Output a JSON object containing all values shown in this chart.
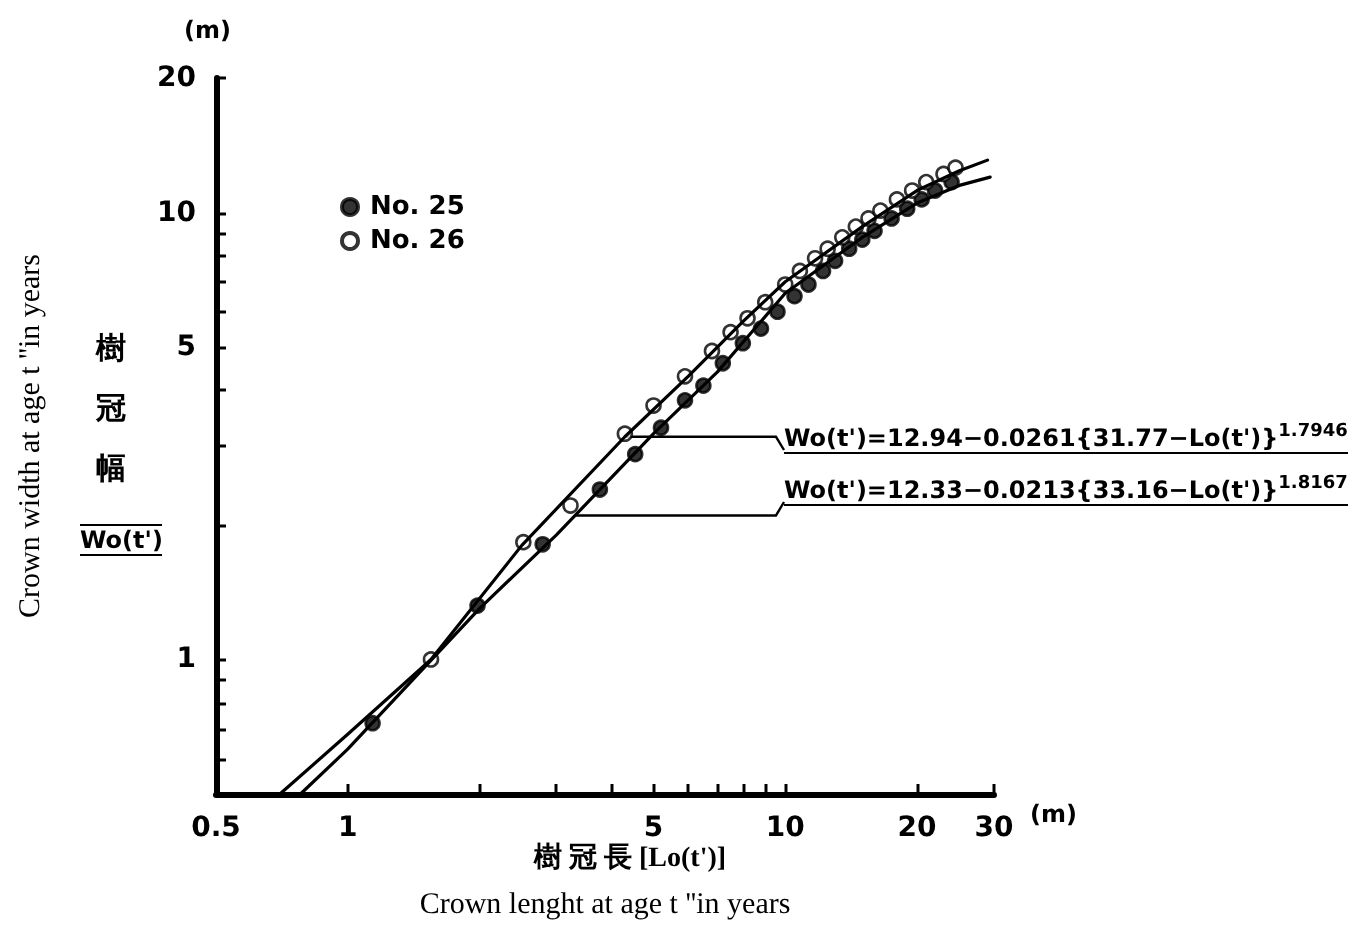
{
  "chart_data": {
    "type": "scatter",
    "xlabel": "Crown lenght at age t ''in years",
    "ylabel": "Crown width at age t ''in years",
    "log": "xy",
    "grid": false,
    "legend": "top left",
    "marker": "circle",
    "line_style": "solid",
    "xlim": [
      0.5,
      30
    ],
    "ylim": [
      0.5,
      20
    ],
    "xticks": [
      0.5,
      1,
      {
        "value": 2,
        "label": null
      },
      {
        "value": 3,
        "label": null
      },
      {
        "value": 4,
        "label": null
      },
      5,
      {
        "value": 6,
        "label": null
      },
      {
        "value": 7,
        "label": null
      },
      {
        "value": 8,
        "label": null
      },
      {
        "value": 9,
        "label": null
      },
      10,
      20,
      30
    ],
    "yticks": [
      {
        "value": 0.6,
        "label": null
      },
      {
        "value": 0.7,
        "label": null
      },
      {
        "value": 0.8,
        "label": null
      },
      {
        "value": 0.9,
        "label": null
      },
      1,
      {
        "value": 2,
        "label": null
      },
      {
        "value": 3,
        "label": null
      },
      {
        "value": 4,
        "label": null
      },
      5,
      {
        "value": 6,
        "label": null
      },
      {
        "value": 7,
        "label": null
      },
      {
        "value": 8,
        "label": null
      },
      {
        "value": 9,
        "label": null
      },
      10,
      20
    ],
    "series": [
      {
        "name": "No. 25",
        "color": "#000000",
        "x": [
          1.14,
          1.98,
          2.79,
          3.77,
          4.54,
          5.2,
          5.9,
          6.5,
          7.2,
          8,
          8.8,
          9.6,
          10.5,
          11.3,
          12.2,
          13,
          14,
          15,
          16,
          17.5,
          19,
          20.5,
          22,
          24
        ],
        "values": [
          0.72,
          1.32,
          1.81,
          2.4,
          2.88,
          3.3,
          3.8,
          4.1,
          4.6,
          5.1,
          5.5,
          6.0,
          6.5,
          6.9,
          7.4,
          7.8,
          8.3,
          8.7,
          9.1,
          9.7,
          10.2,
          10.7,
          11.2,
          11.7
        ]
      },
      {
        "name": "No. 26",
        "color": "#ffffff",
        "x": [
          1.55,
          2.52,
          3.23,
          4.3,
          5.0,
          5.9,
          6.8,
          7.5,
          8.2,
          9.0,
          10,
          10.8,
          11.7,
          12.5,
          13.5,
          14.5,
          15.5,
          16.5,
          18,
          19.5,
          21,
          23,
          24.5
        ],
        "values": [
          1.0,
          1.83,
          2.21,
          3.2,
          3.7,
          4.3,
          4.9,
          5.4,
          5.8,
          6.3,
          6.9,
          7.4,
          7.9,
          8.3,
          8.8,
          9.3,
          9.7,
          10.1,
          10.7,
          11.2,
          11.7,
          12.2,
          12.6
        ]
      },
      {
        "type": "line",
        "marker": "none",
        "color": "#000000",
        "x": [
          0.7,
          1,
          1.55,
          2.5,
          4.3,
          6,
          8,
          10,
          15,
          20,
          25,
          29
        ],
        "values": [
          0.5,
          0.68,
          1.0,
          1.8,
          3.15,
          4.3,
          5.7,
          7.0,
          9.3,
          11.2,
          12.4,
          13.1
        ]
      },
      {
        "type": "line",
        "marker": "none",
        "color": "#000000",
        "x": [
          0.78,
          1,
          2,
          3,
          5,
          7,
          10,
          15,
          20,
          25,
          29.4
        ],
        "values": [
          0.5,
          0.63,
          1.3,
          1.9,
          3.2,
          4.4,
          6.6,
          8.8,
          10.5,
          11.5,
          12.0
        ]
      }
    ],
    "annotations": [
      "(m)",
      "(m)",
      "樹冠幅",
      "Wo(t')",
      "樹 冠 長 [Lo(t')]",
      {
        "text": "Wo(t')=12.94−0.0261{31.77−Lo(t')}$^{1.7946}$",
        "x": 4.3,
        "y": 3.15
      },
      {
        "text": "Wo(t')=12.33−0.0213{33.16−Lo(t')}$^{1.8167}$",
        "x": 3.3,
        "y": 2.1
      }
    ]
  }
}
